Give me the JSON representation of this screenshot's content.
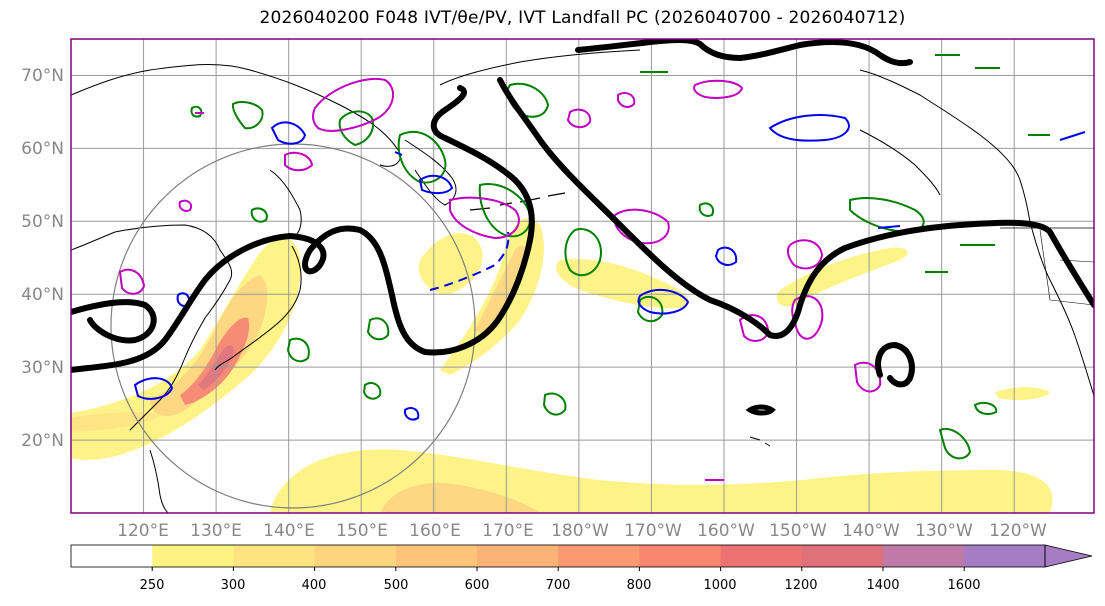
{
  "title": "2026040200 F048 IVT/θe/PV, IVT Landfall PC (2026040700 - 2026040712)",
  "map": {
    "lat_labels": [
      "70°N",
      "60°N",
      "50°N",
      "40°N",
      "30°N",
      "20°N"
    ],
    "lat_values": [
      70,
      60,
      50,
      40,
      30,
      20
    ],
    "lon_labels": [
      "120°E",
      "130°E",
      "140°E",
      "150°E",
      "160°E",
      "170°E",
      "180°W",
      "170°W",
      "160°W",
      "150°W",
      "140°W",
      "130°W",
      "120°W"
    ],
    "lon_values": [
      120,
      130,
      140,
      150,
      160,
      170,
      180,
      190,
      200,
      210,
      220,
      230,
      240
    ],
    "lat_range": [
      10,
      75
    ],
    "lon_range": [
      110,
      251
    ],
    "contour_colors": {
      "theta_e": "#000000",
      "pv_green": "#008000",
      "pv_magenta": "#c000c0",
      "pv_blue": "#0000ee",
      "reference_circle": "#808080",
      "frame": "#800080"
    }
  },
  "colorbar": {
    "ticks": [
      "250",
      "300",
      "400",
      "500",
      "600",
      "700",
      "800",
      "1000",
      "1200",
      "1400",
      "1600"
    ],
    "colors": [
      "#ffffff",
      "#fdf382",
      "#fde480",
      "#fdd57c",
      "#fdc47a",
      "#fdb377",
      "#fb9a72",
      "#f7866f",
      "#ef7272",
      "#de7179",
      "#bf7aa9",
      "#a67cc4"
    ]
  }
}
